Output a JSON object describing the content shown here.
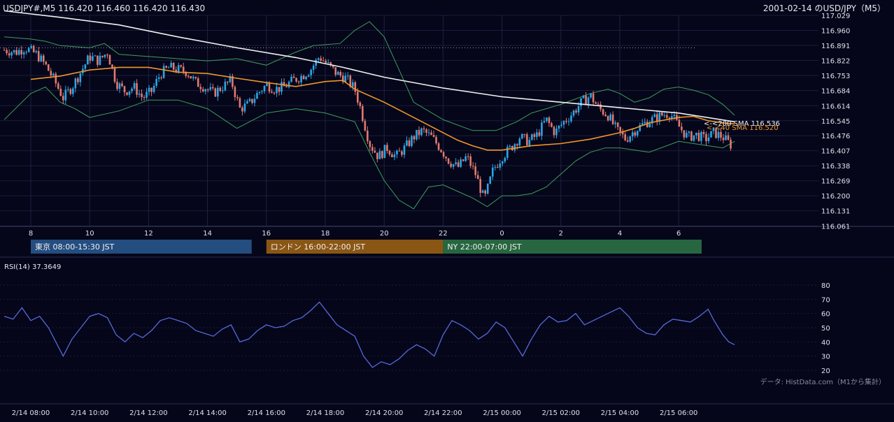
{
  "header": {
    "symbol_line": "USDJPY#,M5 116.420 116.460 116.420 116.430",
    "title": "2001-02-14 のUSD/JPY（M5）"
  },
  "colors": {
    "background": "#05061a",
    "bull": "#2aa6e6",
    "bear": "#e07a70",
    "sma200": "#f0f0f0",
    "sma40": "#f0962a",
    "bollinger": "#3f9e5c",
    "rsi": "#5868d8"
  },
  "sessions": [
    {
      "label": "東京 08:00-15:30 JST",
      "color": "#244d80"
    },
    {
      "label": "ロンドン 16:00-22:00 JST",
      "color": "#8a5614"
    },
    {
      "label": "NY 22:00-07:00 JST",
      "color": "#276640"
    }
  ],
  "rsi_panel": {
    "label": "RSI(14) 37.3649"
  },
  "footer": {
    "source": "データ: HistData.com（M1から集計）"
  },
  "chart_data": {
    "type": "candlestick",
    "price_axis": {
      "min": 116.061,
      "max": 117.029,
      "ticks": [
        "117.029",
        "116.960",
        "116.891",
        "116.822",
        "116.753",
        "116.684",
        "116.614",
        "116.545",
        "116.476",
        "116.407",
        "116.338",
        "116.269",
        "116.200",
        "116.131",
        "116.061"
      ]
    },
    "hour_ticks": [
      "8",
      "10",
      "12",
      "14",
      "16",
      "18",
      "20",
      "22",
      "0",
      "2",
      "4",
      "6"
    ],
    "time_ticks": [
      "2/14 08:00",
      "2/14 10:00",
      "2/14 12:00",
      "2/14 14:00",
      "2/14 16:00",
      "2/14 18:00",
      "2/14 20:00",
      "2/14 22:00",
      "2/15 00:00",
      "2/15 02:00",
      "2/15 04:00",
      "2/15 06:00"
    ],
    "annotations": {
      "sma200": "<-<200 SMA 116.536",
      "sma40": "<-<40 SMA 116.520"
    },
    "reference_line": 116.88,
    "sma40_points": [
      {
        "h": 0,
        "v": 116.735
      },
      {
        "h": 1,
        "v": 116.75
      },
      {
        "h": 2,
        "v": 116.778
      },
      {
        "h": 3,
        "v": 116.79
      },
      {
        "h": 4,
        "v": 116.79
      },
      {
        "h": 5,
        "v": 116.768
      },
      {
        "h": 6,
        "v": 116.762
      },
      {
        "h": 7,
        "v": 116.74
      },
      {
        "h": 8,
        "v": 116.72
      },
      {
        "h": 9,
        "v": 116.702
      },
      {
        "h": 10,
        "v": 116.725
      },
      {
        "h": 10.6,
        "v": 116.73
      },
      {
        "h": 11,
        "v": 116.69
      },
      {
        "h": 12,
        "v": 116.63
      },
      {
        "h": 13,
        "v": 116.56
      },
      {
        "h": 14,
        "v": 116.49
      },
      {
        "h": 14.5,
        "v": 116.455
      },
      {
        "h": 15,
        "v": 116.43
      },
      {
        "h": 15.5,
        "v": 116.41
      },
      {
        "h": 16,
        "v": 116.41
      },
      {
        "h": 16.5,
        "v": 116.42
      },
      {
        "h": 17,
        "v": 116.43
      },
      {
        "h": 18,
        "v": 116.44
      },
      {
        "h": 19,
        "v": 116.46
      },
      {
        "h": 20,
        "v": 116.49
      },
      {
        "h": 20.5,
        "v": 116.51
      },
      {
        "h": 21,
        "v": 116.535
      },
      {
        "h": 22,
        "v": 116.56
      },
      {
        "h": 22.5,
        "v": 116.565
      },
      {
        "h": 23,
        "v": 116.545
      },
      {
        "h": 23.5,
        "v": 116.535
      },
      {
        "h": 23.9,
        "v": 116.53
      }
    ],
    "sma200_points": [
      {
        "h": -0.9,
        "v": 117.05
      },
      {
        "h": 1,
        "v": 117.02
      },
      {
        "h": 3,
        "v": 116.985
      },
      {
        "h": 5,
        "v": 116.93
      },
      {
        "h": 7,
        "v": 116.88
      },
      {
        "h": 9,
        "v": 116.835
      },
      {
        "h": 10.6,
        "v": 116.79
      },
      {
        "h": 12,
        "v": 116.745
      },
      {
        "h": 14,
        "v": 116.695
      },
      {
        "h": 16,
        "v": 116.655
      },
      {
        "h": 18,
        "v": 116.63
      },
      {
        "h": 20,
        "v": 116.605
      },
      {
        "h": 22,
        "v": 116.58
      },
      {
        "h": 23.9,
        "v": 116.54
      }
    ],
    "bb_upper_points": [
      {
        "h": -0.9,
        "v": 116.93
      },
      {
        "h": 0,
        "v": 116.92
      },
      {
        "h": 0.5,
        "v": 116.91
      },
      {
        "h": 1,
        "v": 116.89
      },
      {
        "h": 2,
        "v": 116.88
      },
      {
        "h": 2.5,
        "v": 116.9
      },
      {
        "h": 3,
        "v": 116.85
      },
      {
        "h": 4,
        "v": 116.84
      },
      {
        "h": 5,
        "v": 116.83
      },
      {
        "h": 6,
        "v": 116.82
      },
      {
        "h": 7,
        "v": 116.83
      },
      {
        "h": 8,
        "v": 116.8
      },
      {
        "h": 9,
        "v": 116.86
      },
      {
        "h": 9.6,
        "v": 116.89
      },
      {
        "h": 10.5,
        "v": 116.9
      },
      {
        "h": 11,
        "v": 116.96
      },
      {
        "h": 11.5,
        "v": 117.0
      },
      {
        "h": 12,
        "v": 116.93
      },
      {
        "h": 12.5,
        "v": 116.78
      },
      {
        "h": 13,
        "v": 116.63
      },
      {
        "h": 14,
        "v": 116.55
      },
      {
        "h": 15,
        "v": 116.5
      },
      {
        "h": 15.8,
        "v": 116.5
      },
      {
        "h": 16.5,
        "v": 116.54
      },
      {
        "h": 17,
        "v": 116.58
      },
      {
        "h": 18,
        "v": 116.62
      },
      {
        "h": 19,
        "v": 116.67
      },
      {
        "h": 19.6,
        "v": 116.69
      },
      {
        "h": 20,
        "v": 116.67
      },
      {
        "h": 20.5,
        "v": 116.63
      },
      {
        "h": 21,
        "v": 116.65
      },
      {
        "h": 21.5,
        "v": 116.69
      },
      {
        "h": 22,
        "v": 116.7
      },
      {
        "h": 22.5,
        "v": 116.685
      },
      {
        "h": 23,
        "v": 116.665
      },
      {
        "h": 23.5,
        "v": 116.62
      },
      {
        "h": 23.9,
        "v": 116.57
      }
    ],
    "bb_lower_points": [
      {
        "h": -0.9,
        "v": 116.55
      },
      {
        "h": 0,
        "v": 116.67
      },
      {
        "h": 0.5,
        "v": 116.7
      },
      {
        "h": 1,
        "v": 116.63
      },
      {
        "h": 1.5,
        "v": 116.6
      },
      {
        "h": 2,
        "v": 116.56
      },
      {
        "h": 3,
        "v": 116.59
      },
      {
        "h": 4,
        "v": 116.64
      },
      {
        "h": 5,
        "v": 116.64
      },
      {
        "h": 6,
        "v": 116.6
      },
      {
        "h": 7,
        "v": 116.51
      },
      {
        "h": 8,
        "v": 116.58
      },
      {
        "h": 9,
        "v": 116.6
      },
      {
        "h": 10,
        "v": 116.58
      },
      {
        "h": 11,
        "v": 116.54
      },
      {
        "h": 11.5,
        "v": 116.4
      },
      {
        "h": 12,
        "v": 116.27
      },
      {
        "h": 12.5,
        "v": 116.18
      },
      {
        "h": 13,
        "v": 116.14
      },
      {
        "h": 13.5,
        "v": 116.24
      },
      {
        "h": 14,
        "v": 116.25
      },
      {
        "h": 14.5,
        "v": 116.22
      },
      {
        "h": 15,
        "v": 116.19
      },
      {
        "h": 15.5,
        "v": 116.15
      },
      {
        "h": 16,
        "v": 116.2
      },
      {
        "h": 16.5,
        "v": 116.2
      },
      {
        "h": 17,
        "v": 116.21
      },
      {
        "h": 17.5,
        "v": 116.24
      },
      {
        "h": 18,
        "v": 116.3
      },
      {
        "h": 18.5,
        "v": 116.36
      },
      {
        "h": 19,
        "v": 116.4
      },
      {
        "h": 19.5,
        "v": 116.42
      },
      {
        "h": 20,
        "v": 116.42
      },
      {
        "h": 20.5,
        "v": 116.41
      },
      {
        "h": 21,
        "v": 116.4
      },
      {
        "h": 22,
        "v": 116.45
      },
      {
        "h": 23,
        "v": 116.43
      },
      {
        "h": 23.5,
        "v": 116.42
      },
      {
        "h": 23.9,
        "v": 116.45
      }
    ],
    "price_path": [
      {
        "h": -0.9,
        "v": 116.87
      },
      {
        "h": -0.5,
        "v": 116.86
      },
      {
        "h": -0.2,
        "v": 116.88
      },
      {
        "h": 0.2,
        "v": 116.85
      },
      {
        "h": 0.5,
        "v": 116.8
      },
      {
        "h": 0.8,
        "v": 116.73
      },
      {
        "h": 1.1,
        "v": 116.65
      },
      {
        "h": 1.4,
        "v": 116.7
      },
      {
        "h": 1.7,
        "v": 116.77
      },
      {
        "h": 2.0,
        "v": 116.84
      },
      {
        "h": 2.3,
        "v": 116.82
      },
      {
        "h": 2.6,
        "v": 116.86
      },
      {
        "h": 2.9,
        "v": 116.72
      },
      {
        "h": 3.2,
        "v": 116.68
      },
      {
        "h": 3.5,
        "v": 116.7
      },
      {
        "h": 3.8,
        "v": 116.65
      },
      {
        "h": 4.1,
        "v": 116.68
      },
      {
        "h": 4.4,
        "v": 116.76
      },
      {
        "h": 4.7,
        "v": 116.79
      },
      {
        "h": 5.0,
        "v": 116.78
      },
      {
        "h": 5.3,
        "v": 116.77
      },
      {
        "h": 5.6,
        "v": 116.72
      },
      {
        "h": 5.9,
        "v": 116.7
      },
      {
        "h": 6.2,
        "v": 116.67
      },
      {
        "h": 6.5,
        "v": 116.7
      },
      {
        "h": 6.8,
        "v": 116.73
      },
      {
        "h": 7.1,
        "v": 116.6
      },
      {
        "h": 7.4,
        "v": 116.62
      },
      {
        "h": 7.7,
        "v": 116.67
      },
      {
        "h": 8.0,
        "v": 116.71
      },
      {
        "h": 8.3,
        "v": 116.69
      },
      {
        "h": 8.6,
        "v": 116.7
      },
      {
        "h": 8.9,
        "v": 116.73
      },
      {
        "h": 9.2,
        "v": 116.75
      },
      {
        "h": 9.5,
        "v": 116.78
      },
      {
        "h": 9.8,
        "v": 116.84
      },
      {
        "h": 10.1,
        "v": 116.8
      },
      {
        "h": 10.4,
        "v": 116.76
      },
      {
        "h": 10.7,
        "v": 116.74
      },
      {
        "h": 11.0,
        "v": 116.69
      },
      {
        "h": 11.2,
        "v": 116.6
      },
      {
        "h": 11.5,
        "v": 116.44
      },
      {
        "h": 11.8,
        "v": 116.38
      },
      {
        "h": 12.1,
        "v": 116.42
      },
      {
        "h": 12.4,
        "v": 116.38
      },
      {
        "h": 12.7,
        "v": 116.42
      },
      {
        "h": 13.0,
        "v": 116.47
      },
      {
        "h": 13.3,
        "v": 116.5
      },
      {
        "h": 13.6,
        "v": 116.47
      },
      {
        "h": 13.9,
        "v": 116.42
      },
      {
        "h": 14.2,
        "v": 116.36
      },
      {
        "h": 14.5,
        "v": 116.33
      },
      {
        "h": 14.8,
        "v": 116.38
      },
      {
        "h": 15.1,
        "v": 116.3
      },
      {
        "h": 15.4,
        "v": 116.18
      },
      {
        "h": 15.7,
        "v": 116.32
      },
      {
        "h": 16.0,
        "v": 116.38
      },
      {
        "h": 16.3,
        "v": 116.42
      },
      {
        "h": 16.6,
        "v": 116.47
      },
      {
        "h": 16.9,
        "v": 116.45
      },
      {
        "h": 17.2,
        "v": 116.48
      },
      {
        "h": 17.5,
        "v": 116.55
      },
      {
        "h": 17.8,
        "v": 116.49
      },
      {
        "h": 18.1,
        "v": 116.54
      },
      {
        "h": 18.4,
        "v": 116.58
      },
      {
        "h": 18.7,
        "v": 116.63
      },
      {
        "h": 19.0,
        "v": 116.66
      },
      {
        "h": 19.3,
        "v": 116.6
      },
      {
        "h": 19.6,
        "v": 116.57
      },
      {
        "h": 19.9,
        "v": 116.5
      },
      {
        "h": 20.2,
        "v": 116.46
      },
      {
        "h": 20.5,
        "v": 116.5
      },
      {
        "h": 20.8,
        "v": 116.53
      },
      {
        "h": 21.1,
        "v": 116.55
      },
      {
        "h": 21.4,
        "v": 116.57
      },
      {
        "h": 21.7,
        "v": 116.58
      },
      {
        "h": 22.0,
        "v": 116.52
      },
      {
        "h": 22.3,
        "v": 116.47
      },
      {
        "h": 22.6,
        "v": 116.48
      },
      {
        "h": 22.9,
        "v": 116.46
      },
      {
        "h": 23.2,
        "v": 116.49
      },
      {
        "h": 23.5,
        "v": 116.47
      },
      {
        "h": 23.8,
        "v": 116.43
      }
    ],
    "rsi": {
      "ticks": [
        "80",
        "70",
        "60",
        "50",
        "40",
        "30",
        "20"
      ],
      "min": 15,
      "max": 85,
      "points": [
        {
          "h": -0.9,
          "v": 58
        },
        {
          "h": -0.6,
          "v": 56
        },
        {
          "h": -0.3,
          "v": 64
        },
        {
          "h": 0.0,
          "v": 55
        },
        {
          "h": 0.3,
          "v": 58
        },
        {
          "h": 0.6,
          "v": 50
        },
        {
          "h": 0.9,
          "v": 38
        },
        {
          "h": 1.1,
          "v": 30
        },
        {
          "h": 1.4,
          "v": 42
        },
        {
          "h": 1.7,
          "v": 50
        },
        {
          "h": 2.0,
          "v": 58
        },
        {
          "h": 2.3,
          "v": 60
        },
        {
          "h": 2.6,
          "v": 57
        },
        {
          "h": 2.9,
          "v": 45
        },
        {
          "h": 3.2,
          "v": 40
        },
        {
          "h": 3.5,
          "v": 46
        },
        {
          "h": 3.8,
          "v": 43
        },
        {
          "h": 4.1,
          "v": 48
        },
        {
          "h": 4.4,
          "v": 55
        },
        {
          "h": 4.7,
          "v": 57
        },
        {
          "h": 5.0,
          "v": 55
        },
        {
          "h": 5.3,
          "v": 53
        },
        {
          "h": 5.6,
          "v": 48
        },
        {
          "h": 5.9,
          "v": 46
        },
        {
          "h": 6.2,
          "v": 44
        },
        {
          "h": 6.5,
          "v": 49
        },
        {
          "h": 6.8,
          "v": 52
        },
        {
          "h": 7.1,
          "v": 40
        },
        {
          "h": 7.4,
          "v": 42
        },
        {
          "h": 7.7,
          "v": 48
        },
        {
          "h": 8.0,
          "v": 52
        },
        {
          "h": 8.3,
          "v": 50
        },
        {
          "h": 8.6,
          "v": 51
        },
        {
          "h": 8.9,
          "v": 55
        },
        {
          "h": 9.2,
          "v": 57
        },
        {
          "h": 9.5,
          "v": 62
        },
        {
          "h": 9.8,
          "v": 68
        },
        {
          "h": 10.1,
          "v": 60
        },
        {
          "h": 10.4,
          "v": 52
        },
        {
          "h": 10.7,
          "v": 48
        },
        {
          "h": 11.0,
          "v": 44
        },
        {
          "h": 11.3,
          "v": 30
        },
        {
          "h": 11.6,
          "v": 22
        },
        {
          "h": 11.9,
          "v": 26
        },
        {
          "h": 12.2,
          "v": 24
        },
        {
          "h": 12.5,
          "v": 28
        },
        {
          "h": 12.8,
          "v": 34
        },
        {
          "h": 13.1,
          "v": 38
        },
        {
          "h": 13.4,
          "v": 35
        },
        {
          "h": 13.7,
          "v": 30
        },
        {
          "h": 14.0,
          "v": 45
        },
        {
          "h": 14.3,
          "v": 55
        },
        {
          "h": 14.6,
          "v": 52
        },
        {
          "h": 14.9,
          "v": 48
        },
        {
          "h": 15.2,
          "v": 42
        },
        {
          "h": 15.5,
          "v": 46
        },
        {
          "h": 15.8,
          "v": 54
        },
        {
          "h": 16.1,
          "v": 50
        },
        {
          "h": 16.4,
          "v": 40
        },
        {
          "h": 16.7,
          "v": 30
        },
        {
          "h": 17.0,
          "v": 42
        },
        {
          "h": 17.3,
          "v": 52
        },
        {
          "h": 17.6,
          "v": 58
        },
        {
          "h": 17.9,
          "v": 54
        },
        {
          "h": 18.2,
          "v": 55
        },
        {
          "h": 18.5,
          "v": 60
        },
        {
          "h": 18.8,
          "v": 52
        },
        {
          "h": 19.1,
          "v": 55
        },
        {
          "h": 19.4,
          "v": 58
        },
        {
          "h": 19.7,
          "v": 61
        },
        {
          "h": 20.0,
          "v": 64
        },
        {
          "h": 20.3,
          "v": 58
        },
        {
          "h": 20.6,
          "v": 50
        },
        {
          "h": 20.9,
          "v": 46
        },
        {
          "h": 21.2,
          "v": 45
        },
        {
          "h": 21.5,
          "v": 52
        },
        {
          "h": 21.8,
          "v": 56
        },
        {
          "h": 22.1,
          "v": 55
        },
        {
          "h": 22.4,
          "v": 54
        },
        {
          "h": 22.7,
          "v": 58
        },
        {
          "h": 23.0,
          "v": 63
        },
        {
          "h": 23.2,
          "v": 55
        },
        {
          "h": 23.5,
          "v": 45
        },
        {
          "h": 23.7,
          "v": 40
        },
        {
          "h": 23.9,
          "v": 38
        }
      ]
    }
  }
}
